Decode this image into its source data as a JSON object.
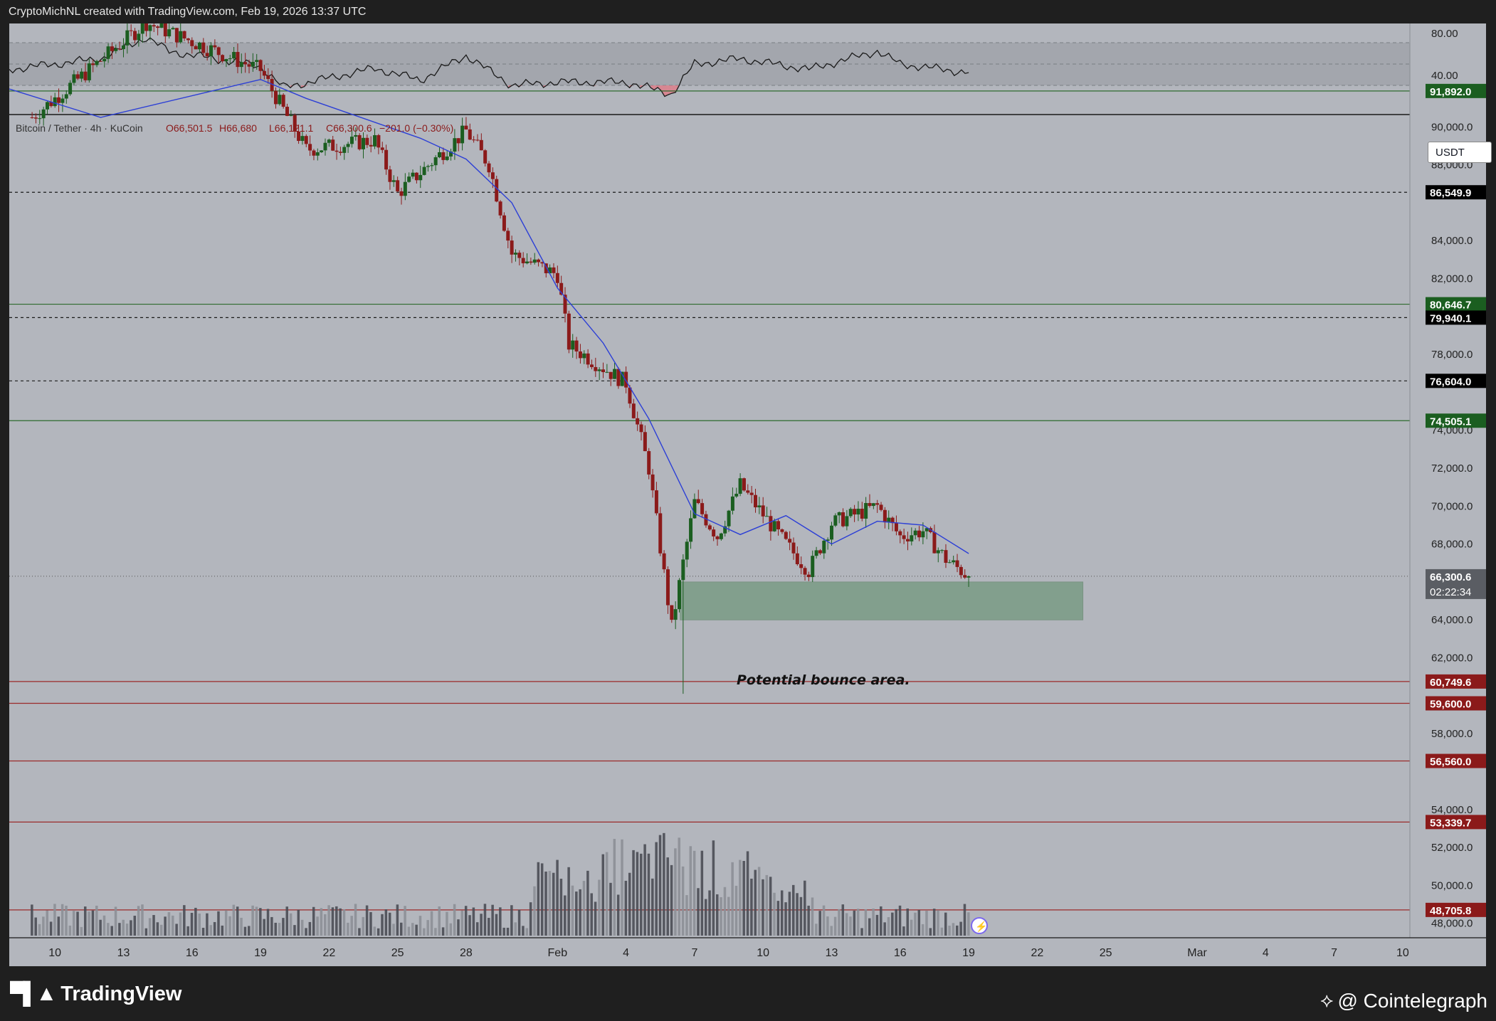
{
  "header": {
    "caption": "CryptoMichNL created with TradingView.com, Feb 19, 2026 13:37 UTC"
  },
  "symbol_bar": {
    "symbol": "Bitcoin / Tether · 4h · KuCoin",
    "open": "O66,501.5",
    "high": "H66,680",
    "low": "L66,121.1",
    "close": "C66,300.6",
    "change": "−201.0 (−0.30%)"
  },
  "price_axis": {
    "currency": "USDT",
    "tick_labels": [
      "90,000.0",
      "88,000.0",
      "84,000.0",
      "82,000.0",
      "78,000.0",
      "74,000.0",
      "72,000.0",
      "70,000.0",
      "68,000.0",
      "64,000.0",
      "62,000.0",
      "58,000.0",
      "54,000.0",
      "52,000.0",
      "50,000.0",
      "48,000.0"
    ],
    "rsi_tick_labels": [
      "80.00",
      "40.00"
    ]
  },
  "level_labels": [
    {
      "text": "91,892.0",
      "color": "#1b5e20"
    },
    {
      "text": "86,549.9",
      "color": "#000000"
    },
    {
      "text": "80,646.7",
      "color": "#1b5e20"
    },
    {
      "text": "79,940.1",
      "color": "#000000"
    },
    {
      "text": "76,604.0",
      "color": "#000000"
    },
    {
      "text": "74,505.1",
      "color": "#1b5e20"
    },
    {
      "text": "60,749.6",
      "color": "#8b1a1a"
    },
    {
      "text": "59,600.0",
      "color": "#8b1a1a"
    },
    {
      "text": "56,560.0",
      "color": "#8b1a1a"
    },
    {
      "text": "53,339.7",
      "color": "#8b1a1a"
    },
    {
      "text": "48,705.8",
      "color": "#8b1a1a"
    }
  ],
  "current_price": {
    "price": "66,300.6",
    "countdown": "02:22:34"
  },
  "annotation": {
    "text": "Potential bounce area."
  },
  "date_axis": {
    "labels": [
      "10",
      "13",
      "16",
      "19",
      "22",
      "25",
      "28",
      "Feb",
      "4",
      "7",
      "10",
      "13",
      "16",
      "19",
      "22",
      "25",
      "Mar",
      "4",
      "7",
      "10"
    ]
  },
  "footer": {
    "brand": "TradingView",
    "watermark": "@ Cointelegraph"
  },
  "colors": {
    "up": "#1b5e20",
    "down": "#8b1a1a",
    "ma": "#2c3fd6",
    "zone": "#7a9c85",
    "background": "#b3b6bd"
  },
  "chart_data": {
    "type": "candlestick",
    "title": "Bitcoin / Tether · 4h · KuCoin",
    "x_range": [
      "Jan 8, 2026",
      "Mar 11, 2026"
    ],
    "y_range": [
      47500,
      93500
    ],
    "key_prices": [
      {
        "date": "Jan 9",
        "value": 90500
      },
      {
        "date": "Jan 14",
        "value": 95500
      },
      {
        "date": "Jan 19",
        "value": 93000
      },
      {
        "date": "Jan 21",
        "value": 88800
      },
      {
        "date": "Jan 24",
        "value": 89300
      },
      {
        "date": "Jan 25",
        "value": 86500
      },
      {
        "date": "Jan 28",
        "value": 89800
      },
      {
        "date": "Jan 29",
        "value": 88000
      },
      {
        "date": "Jan 30",
        "value": 83300
      },
      {
        "date": "Feb 1",
        "value": 82200
      },
      {
        "date": "Feb 1",
        "value": 78500
      },
      {
        "date": "Feb 3",
        "value": 77300
      },
      {
        "date": "Feb 4",
        "value": 76500
      },
      {
        "date": "Feb 5",
        "value": 72000
      },
      {
        "date": "Feb 6",
        "value": 63600
      },
      {
        "date": "Feb 6",
        "value": 67000
      },
      {
        "date": "Feb 7",
        "value": 70200
      },
      {
        "date": "Feb 8",
        "value": 68400
      },
      {
        "date": "Feb 9",
        "value": 71100
      },
      {
        "date": "Feb 11",
        "value": 68000
      },
      {
        "date": "Feb 12",
        "value": 66600
      },
      {
        "date": "Feb 13",
        "value": 69100
      },
      {
        "date": "Feb 15",
        "value": 70000
      },
      {
        "date": "Feb 16",
        "value": 68400
      },
      {
        "date": "Feb 17",
        "value": 68700
      },
      {
        "date": "Feb 18",
        "value": 67200
      },
      {
        "date": "Feb 19",
        "value": 66300
      }
    ],
    "moving_average": [
      {
        "date": "Jan 8",
        "value": 92000
      },
      {
        "date": "Jan 12",
        "value": 90500
      },
      {
        "date": "Jan 19",
        "value": 92500
      },
      {
        "date": "Jan 21",
        "value": 91500
      },
      {
        "date": "Jan 26",
        "value": 89400
      },
      {
        "date": "Jan 28",
        "value": 88300
      },
      {
        "date": "Jan 30",
        "value": 86000
      },
      {
        "date": "Feb 1",
        "value": 81500
      },
      {
        "date": "Feb 3",
        "value": 78600
      },
      {
        "date": "Feb 5",
        "value": 74600
      },
      {
        "date": "Feb 7",
        "value": 69600
      },
      {
        "date": "Feb 9",
        "value": 68500
      },
      {
        "date": "Feb 11",
        "value": 69500
      },
      {
        "date": "Feb 13",
        "value": 68000
      },
      {
        "date": "Feb 15",
        "value": 69200
      },
      {
        "date": "Feb 17",
        "value": 69000
      },
      {
        "date": "Feb 19",
        "value": 67500
      }
    ],
    "horizontal_levels": [
      {
        "value": 91892.0,
        "style": "solid",
        "color": "green"
      },
      {
        "value": 86549.9,
        "style": "dashed",
        "color": "black"
      },
      {
        "value": 80646.7,
        "style": "solid",
        "color": "green"
      },
      {
        "value": 79940.1,
        "style": "dashed",
        "color": "black"
      },
      {
        "value": 76604.0,
        "style": "dashed",
        "color": "black"
      },
      {
        "value": 74505.1,
        "style": "solid",
        "color": "green"
      },
      {
        "value": 60749.6,
        "style": "solid",
        "color": "red"
      },
      {
        "value": 59600.0,
        "style": "solid",
        "color": "red"
      },
      {
        "value": 56560.0,
        "style": "solid",
        "color": "red"
      },
      {
        "value": 53339.7,
        "style": "solid",
        "color": "red"
      },
      {
        "value": 48705.8,
        "style": "solid",
        "color": "red"
      }
    ],
    "bounce_zone": {
      "from_date": "Feb 6",
      "to_date": "Feb 24",
      "low": 64000,
      "high": 66000
    },
    "current_price": 66300.6,
    "rsi": {
      "ticks": [
        80,
        40
      ],
      "points": [
        {
          "date": "Jan 8",
          "value": 45
        },
        {
          "date": "Jan 12",
          "value": 55
        },
        {
          "date": "Jan 14",
          "value": 75
        },
        {
          "date": "Jan 15",
          "value": 62
        },
        {
          "date": "Jan 19",
          "value": 48
        },
        {
          "date": "Jan 20",
          "value": 28
        },
        {
          "date": "Jan 24",
          "value": 46
        },
        {
          "date": "Jan 26",
          "value": 35
        },
        {
          "date": "Jan 28",
          "value": 58
        },
        {
          "date": "Jan 30",
          "value": 30
        },
        {
          "date": "Feb 1",
          "value": 33
        },
        {
          "date": "Feb 4",
          "value": 33
        },
        {
          "date": "Feb 6",
          "value": 22
        },
        {
          "date": "Feb 7",
          "value": 50
        },
        {
          "date": "Feb 9",
          "value": 55
        },
        {
          "date": "Feb 12",
          "value": 45
        },
        {
          "date": "Feb 15",
          "value": 62
        },
        {
          "date": "Feb 16",
          "value": 50
        },
        {
          "date": "Feb 19",
          "value": 42
        }
      ]
    },
    "volume_peak_date": "Feb 6"
  }
}
